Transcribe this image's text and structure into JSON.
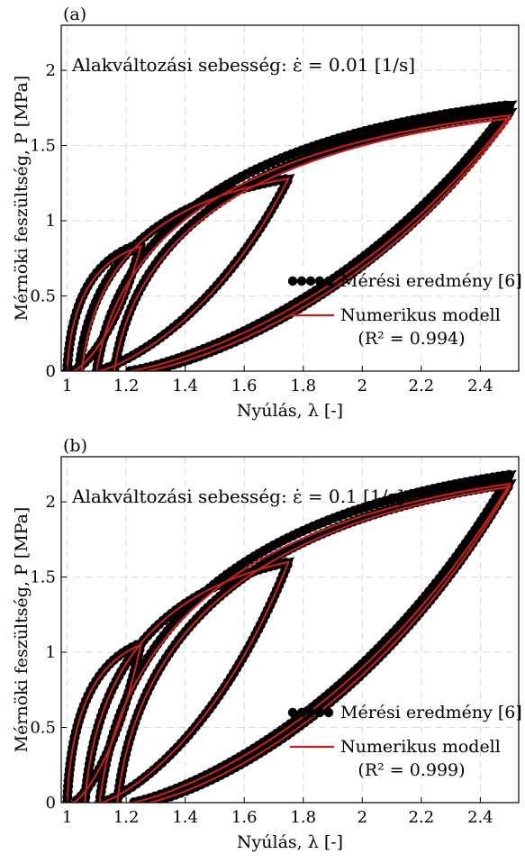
{
  "chart_data": [
    {
      "type": "line",
      "panel_label": "(a)",
      "annotation": "Alakváltozási sebesség: ε̇ = 0.01 [1/s]",
      "xlabel": "Nyúlás, λ [-]",
      "ylabel": "Mérnöki feszültség, P [MPa]",
      "xlim": [
        0.98,
        2.53
      ],
      "ylim": [
        0,
        2.3
      ],
      "xticks": [
        "1",
        "1.2",
        "1.4",
        "1.6",
        "1.8",
        "2",
        "2.2",
        "2.4"
      ],
      "yticks": [
        "0",
        "0.5",
        "1",
        "1.5",
        "2"
      ],
      "grid": true,
      "legend_position": "lower-right",
      "series": [
        {
          "name": "Mérési eredmény [6]",
          "style": "thick-dotted",
          "color": "#000000",
          "loops": [
            {
              "lam_max": 1.25,
              "p_max": 0.85,
              "lam_min": 1.0,
              "pull": 0.45
            },
            {
              "lam_max": 1.75,
              "p_max": 1.28,
              "lam_min": 1.04,
              "pull": 0.55
            },
            {
              "lam_max": 2.5,
              "p_max": 1.77,
              "lam_min": 1.1,
              "pull": 0.6
            },
            {
              "lam_max": 2.5,
              "p_max": 1.72,
              "lam_min": 1.16,
              "pull": 0.62
            }
          ]
        },
        {
          "name": "Numerikus modell",
          "name_line2": "(R² = 0.994)",
          "style": "line",
          "color": "#c0201c",
          "loops": [
            {
              "lam_max": 1.25,
              "p_max": 0.83,
              "lam_min": 1.0,
              "pull": 0.45
            },
            {
              "lam_max": 1.75,
              "p_max": 1.28,
              "lam_min": 1.05,
              "pull": 0.55
            },
            {
              "lam_max": 2.5,
              "p_max": 1.7,
              "lam_min": 1.1,
              "pull": 0.6
            },
            {
              "lam_max": 2.5,
              "p_max": 1.68,
              "lam_min": 1.16,
              "pull": 0.62
            }
          ]
        }
      ]
    },
    {
      "type": "line",
      "panel_label": "(b)",
      "annotation": "Alakváltozási sebesség: ε̇ = 0.1 [1/s]",
      "xlabel": "Nyúlás, λ [-]",
      "ylabel": "Mérnöki feszültség, P [MPa]",
      "xlim": [
        0.98,
        2.53
      ],
      "ylim": [
        0,
        2.3
      ],
      "xticks": [
        "1",
        "1.2",
        "1.4",
        "1.6",
        "1.8",
        "2",
        "2.2",
        "2.4"
      ],
      "yticks": [
        "0",
        "0.5",
        "1",
        "1.5",
        "2"
      ],
      "grid": true,
      "legend_position": "lower-right",
      "series": [
        {
          "name": "Mérési eredmény [6]",
          "style": "thick-dotted",
          "color": "#000000",
          "loops": [
            {
              "lam_max": 1.25,
              "p_max": 1.06,
              "lam_min": 1.0,
              "pull": 0.45
            },
            {
              "lam_max": 1.75,
              "p_max": 1.6,
              "lam_min": 1.06,
              "pull": 0.55
            },
            {
              "lam_max": 2.5,
              "p_max": 2.18,
              "lam_min": 1.11,
              "pull": 0.6
            },
            {
              "lam_max": 2.5,
              "p_max": 2.12,
              "lam_min": 1.17,
              "pull": 0.62
            }
          ]
        },
        {
          "name": "Numerikus modell",
          "name_line2": "(R² = 0.999)",
          "style": "line",
          "color": "#c0201c",
          "loops": [
            {
              "lam_max": 1.25,
              "p_max": 1.05,
              "lam_min": 1.0,
              "pull": 0.45
            },
            {
              "lam_max": 1.75,
              "p_max": 1.6,
              "lam_min": 1.06,
              "pull": 0.55
            },
            {
              "lam_max": 2.5,
              "p_max": 2.12,
              "lam_min": 1.11,
              "pull": 0.6
            },
            {
              "lam_max": 2.5,
              "p_max": 2.1,
              "lam_min": 1.17,
              "pull": 0.62
            }
          ]
        }
      ]
    }
  ]
}
